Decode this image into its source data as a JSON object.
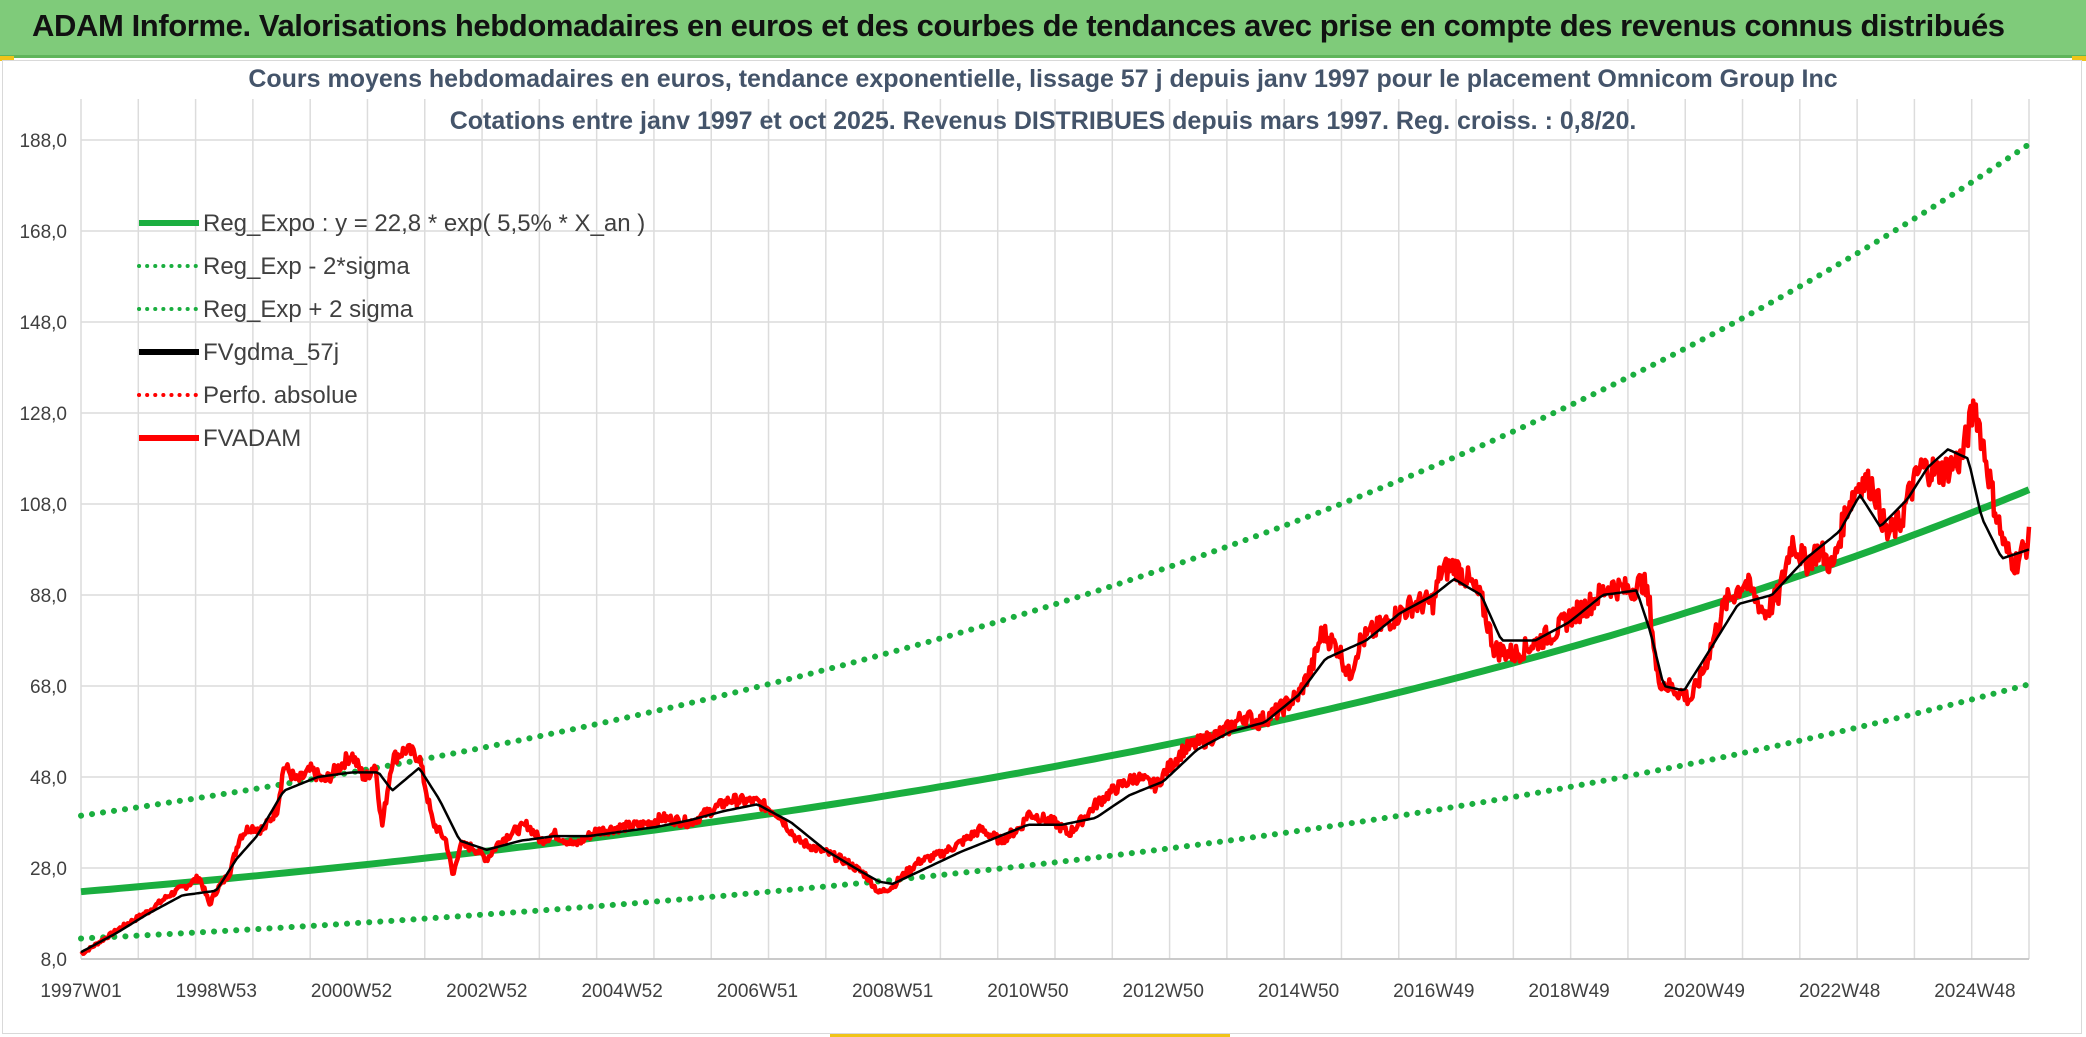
{
  "header": {
    "title": "ADAM Informe. Valorisations hebdomadaires en euros et des courbes de tendances avec prise en compte des revenus connus distribués"
  },
  "colors": {
    "green": "#1aae3f",
    "red": "#ff0000",
    "black": "#000000",
    "grid": "#dcdcdc",
    "header_bg": "#7fcb7a"
  },
  "chart_data": {
    "type": "line",
    "title": "Cours moyens hebdomadaires en euros, tendance exponentielle, lissage 57 j depuis janv 1997 pour le placement Omnicom Group Inc",
    "subtitle": "Cotations entre janv 1997 et oct 2025. Revenus DISTRIBUES depuis mars 1997. Reg. croiss. : 0,8/20.",
    "xlabel": "",
    "ylabel": "",
    "x_range": [
      1997.0,
      2025.8
    ],
    "ylim": [
      8.0,
      197.0
    ],
    "y_ticks": [
      "8,0",
      "28,0",
      "48,0",
      "68,0",
      "88,0",
      "108,0",
      "128,0",
      "148,0",
      "168,0",
      "188,0"
    ],
    "y_tick_values": [
      8,
      28,
      48,
      68,
      88,
      108,
      128,
      148,
      168,
      188
    ],
    "x_ticks": [
      {
        "label": "1997W01",
        "x": 1997.0
      },
      {
        "label": "1998W53",
        "x": 1999.0
      },
      {
        "label": "2000W52",
        "x": 2001.0
      },
      {
        "label": "2002W52",
        "x": 2003.0
      },
      {
        "label": "2004W52",
        "x": 2005.0
      },
      {
        "label": "2006W51",
        "x": 2007.0
      },
      {
        "label": "2008W51",
        "x": 2009.0
      },
      {
        "label": "2010W50",
        "x": 2011.0
      },
      {
        "label": "2012W50",
        "x": 2013.0
      },
      {
        "label": "2014W50",
        "x": 2015.0
      },
      {
        "label": "2016W49",
        "x": 2017.0
      },
      {
        "label": "2018W49",
        "x": 2019.0
      },
      {
        "label": "2020W49",
        "x": 2021.0
      },
      {
        "label": "2022W48",
        "x": 2023.0
      },
      {
        "label": "2024W48",
        "x": 2025.0
      }
    ],
    "legend": [
      {
        "label": "Reg_Expo : y = 22,8 * exp( 5,5% *  X_an )",
        "color": "#1aae3f",
        "style": "solid"
      },
      {
        "label": "Reg_Exp - 2*sigma",
        "color": "#1aae3f",
        "style": "dotted"
      },
      {
        "label": "Reg_Exp + 2 sigma",
        "color": "#1aae3f",
        "style": "dotted"
      },
      {
        "label": "FVgdma_57j",
        "color": "#000000",
        "style": "solid"
      },
      {
        "label": "Perfo. absolue",
        "color": "#ff0000",
        "style": "dotted"
      },
      {
        "label": "FVADAM",
        "color": "#ff0000",
        "style": "solid"
      }
    ],
    "legend_placement": "top-left",
    "series": [
      {
        "name": "Reg_Expo",
        "style": "solid",
        "a": 22.8,
        "rate": 0.055
      },
      {
        "name": "Reg_Exp - 2*sigma",
        "style": "dotted",
        "a": 12.5,
        "rate": 0.059
      },
      {
        "name": "Reg_Exp + 2 sigma",
        "style": "dotted",
        "a": 39.5,
        "rate": 0.054
      },
      {
        "name": "FVADAM",
        "style": "solid",
        "x": [
          1997.0,
          1997.3,
          1997.6,
          1998.0,
          1998.3,
          1998.6,
          1998.75,
          1998.9,
          1999.0,
          1999.2,
          1999.35,
          1999.5,
          1999.7,
          1999.9,
          2000.0,
          2000.2,
          2000.4,
          2000.6,
          2000.8,
          2001.0,
          2001.2,
          2001.35,
          2001.45,
          2001.6,
          2001.8,
          2002.0,
          2002.2,
          2002.4,
          2002.5,
          2002.6,
          2002.8,
          2003.0,
          2003.2,
          2003.4,
          2003.6,
          2003.8,
          2004.0,
          2004.3,
          2004.6,
          2005.0,
          2005.3,
          2005.6,
          2006.0,
          2006.3,
          2006.6,
          2007.0,
          2007.3,
          2007.6,
          2008.0,
          2008.3,
          2008.6,
          2008.8,
          2009.0,
          2009.2,
          2009.4,
          2009.7,
          2010.0,
          2010.3,
          2010.6,
          2010.9,
          2011.0,
          2011.2,
          2011.4,
          2011.6,
          2011.8,
          2012.0,
          2012.3,
          2012.6,
          2012.9,
          2013.0,
          2013.3,
          2013.6,
          2013.9,
          2014.2,
          2014.4,
          2014.7,
          2015.0,
          2015.2,
          2015.35,
          2015.6,
          2015.75,
          2015.9,
          2016.1,
          2016.4,
          2016.7,
          2017.0,
          2017.1,
          2017.3,
          2017.5,
          2017.7,
          2017.9,
          2018.2,
          2018.5,
          2018.8,
          2019.0,
          2019.3,
          2019.6,
          2019.9,
          2020.1,
          2020.2,
          2020.3,
          2020.45,
          2020.6,
          2020.8,
          2021.0,
          2021.3,
          2021.6,
          2021.9,
          2022.1,
          2022.3,
          2022.5,
          2022.7,
          2022.9,
          2023.1,
          2023.3,
          2023.5,
          2023.7,
          2023.9,
          2024.0,
          2024.2,
          2024.5,
          2024.8,
          2025.0,
          2025.15,
          2025.3,
          2025.45,
          2025.6,
          2025.8
        ],
        "values": [
          9.0,
          12.0,
          15.0,
          18.5,
          22.0,
          24.5,
          26.0,
          20.0,
          23.0,
          27.0,
          35.0,
          37.0,
          36.5,
          41.0,
          50.5,
          47.0,
          49.5,
          47.0,
          50.0,
          53.0,
          47.5,
          51.0,
          37.0,
          52.0,
          54.0,
          52.5,
          38.0,
          34.0,
          26.0,
          33.0,
          32.5,
          30.0,
          34.0,
          36.0,
          37.5,
          34.0,
          35.5,
          33.0,
          36.0,
          37.0,
          37.5,
          39.0,
          38.0,
          40.5,
          43.0,
          42.5,
          40.0,
          34.0,
          31.5,
          29.5,
          26.5,
          22.5,
          24.0,
          27.0,
          29.5,
          31.0,
          33.5,
          36.5,
          34.0,
          37.0,
          40.0,
          39.0,
          38.0,
          35.5,
          38.5,
          42.0,
          45.5,
          48.0,
          46.0,
          48.5,
          54.0,
          56.0,
          58.0,
          61.5,
          60.0,
          62.5,
          66.0,
          72.0,
          80.0,
          76.0,
          70.0,
          77.5,
          80.0,
          83.0,
          86.0,
          86.5,
          93.0,
          94.5,
          91.5,
          87.0,
          76.0,
          75.0,
          77.5,
          80.0,
          83.0,
          86.0,
          90.0,
          89.0,
          91.0,
          85.0,
          70.0,
          68.0,
          67.0,
          65.0,
          72.0,
          86.0,
          91.0,
          84.0,
          88.0,
          100.0,
          95.0,
          98.0,
          94.0,
          107.0,
          113.0,
          112.0,
          101.0,
          104.0,
          109.0,
          116.0,
          115.0,
          118.0,
          130.0,
          119.0,
          107.0,
          98.0,
          95.0,
          100.0
        ]
      },
      {
        "name": "FVgdma_57j",
        "style": "solid",
        "x": [
          1997.0,
          1997.5,
          1998.0,
          1998.5,
          1999.0,
          1999.3,
          1999.6,
          2000.0,
          2000.5,
          2001.0,
          2001.4,
          2001.6,
          2002.0,
          2002.3,
          2002.6,
          2003.0,
          2003.5,
          2004.0,
          2004.5,
          2005.0,
          2005.5,
          2006.0,
          2006.5,
          2007.0,
          2007.5,
          2008.0,
          2008.5,
          2008.8,
          2009.0,
          2009.5,
          2010.0,
          2010.5,
          2011.0,
          2011.5,
          2012.0,
          2012.5,
          2013.0,
          2013.5,
          2014.0,
          2014.5,
          2015.0,
          2015.4,
          2015.7,
          2016.0,
          2016.5,
          2017.0,
          2017.3,
          2017.7,
          2018.0,
          2018.5,
          2019.0,
          2019.5,
          2020.0,
          2020.2,
          2020.4,
          2020.7,
          2021.0,
          2021.5,
          2022.0,
          2022.5,
          2023.0,
          2023.3,
          2023.6,
          2024.0,
          2024.3,
          2024.6,
          2024.9,
          2025.1,
          2025.4,
          2025.8
        ],
        "values": [
          9.5,
          13.5,
          18.0,
          22.0,
          23.0,
          30.0,
          35.0,
          45.0,
          48.0,
          49.0,
          49.0,
          45.0,
          50.0,
          43.0,
          34.0,
          32.0,
          34.0,
          35.0,
          35.0,
          36.0,
          37.0,
          38.5,
          40.5,
          42.0,
          38.0,
          32.0,
          27.5,
          25.0,
          24.5,
          28.0,
          31.5,
          34.5,
          37.5,
          37.5,
          39.0,
          44.0,
          47.0,
          54.0,
          58.0,
          60.0,
          66.0,
          74.0,
          76.0,
          78.0,
          84.0,
          88.0,
          91.5,
          88.0,
          78.0,
          78.0,
          82.0,
          88.0,
          89.0,
          80.0,
          68.0,
          67.0,
          74.0,
          86.0,
          88.0,
          96.0,
          102.0,
          110.0,
          103.0,
          109.0,
          116.0,
          120.0,
          118.0,
          105.0,
          96.0,
          98.0
        ]
      }
    ]
  }
}
